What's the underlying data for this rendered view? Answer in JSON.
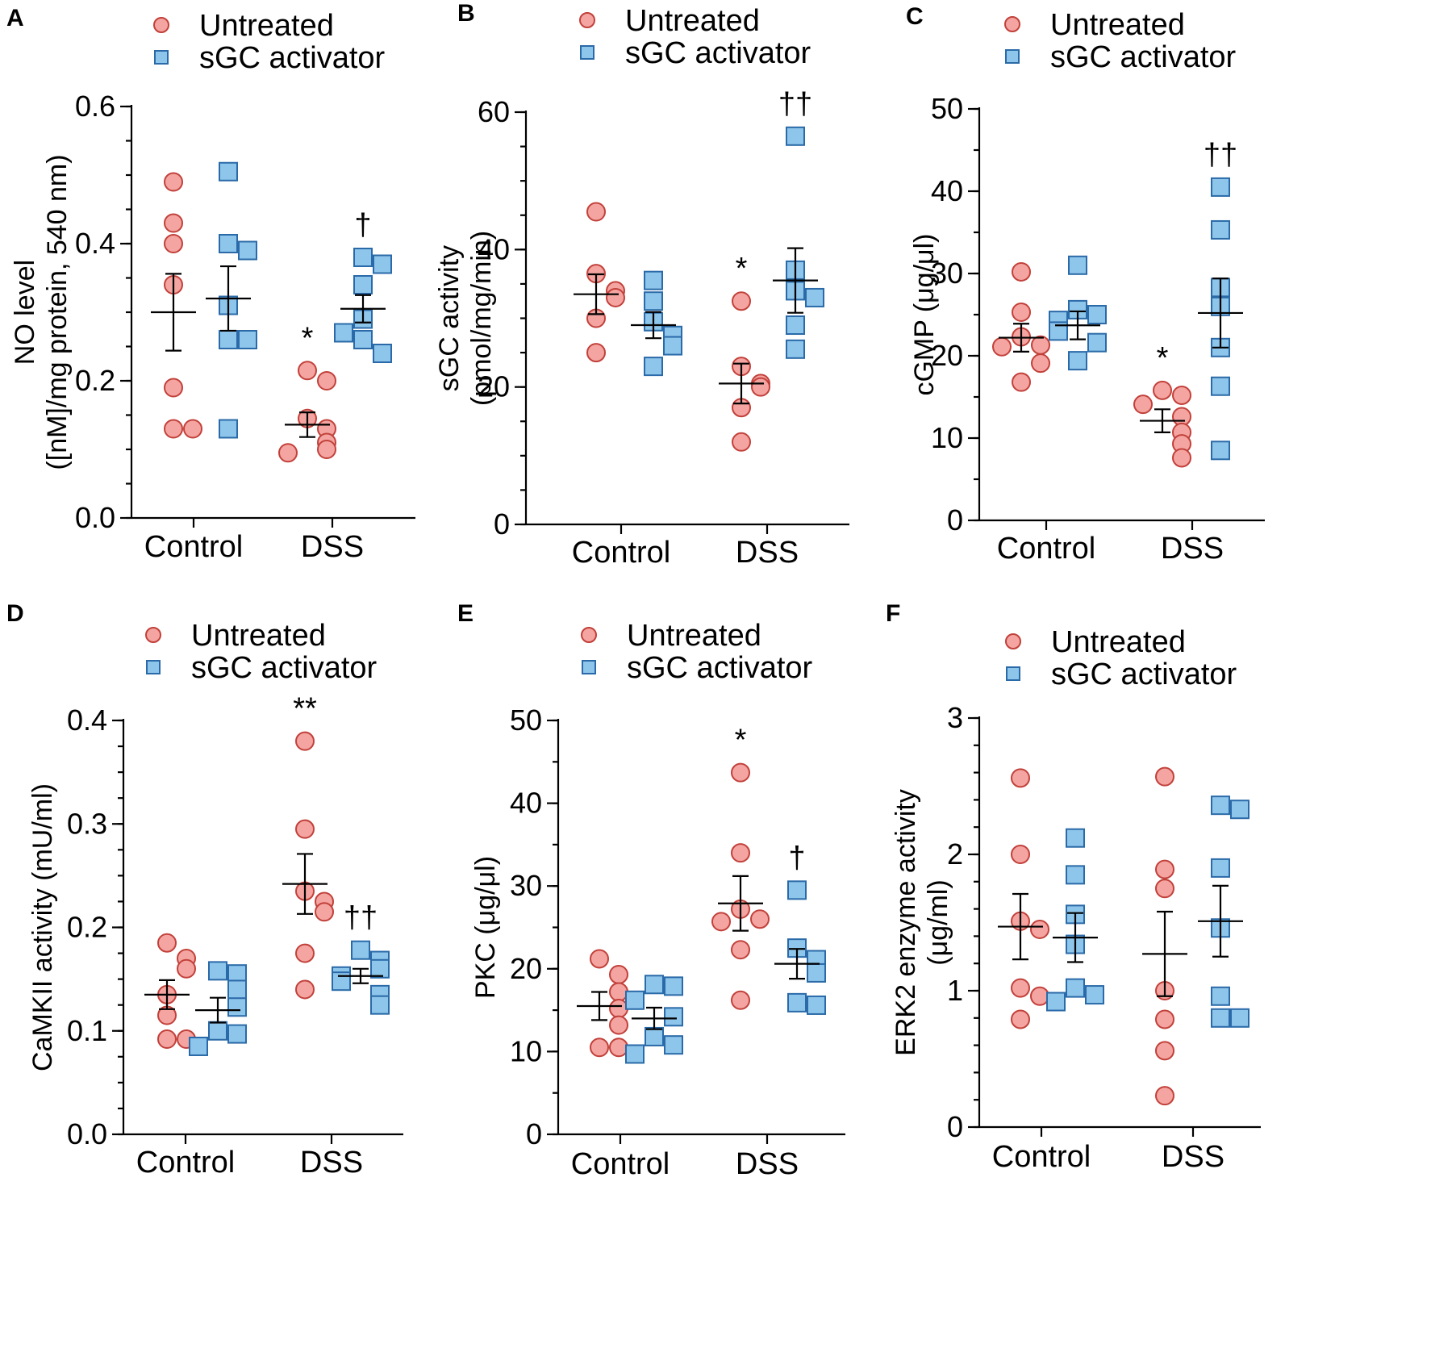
{
  "colors": {
    "untreated": "#f4a5a1",
    "activator": "#8ec5ea",
    "stroke": "#c2403a",
    "stroke_b": "#2a6aa8"
  },
  "legend": {
    "untreated": "Untreated",
    "activator": "sGC activator"
  },
  "categories": [
    "Control",
    "DSS"
  ],
  "chart_data": [
    {
      "type": "scatter",
      "panel": "A",
      "ylabel_lines": [
        "NO level",
        "([nM]/mg protein, 540 nm)"
      ],
      "ylim": [
        0,
        0.6
      ],
      "ticks": [
        "0.0",
        "0.2",
        "0.4",
        "0.6"
      ],
      "tick_values": [
        0,
        0.2,
        0.4,
        0.6
      ],
      "minor_step": 0.05,
      "series": [
        {
          "name": "Untreated",
          "group": "Control",
          "points": [
            0.49,
            0.43,
            0.4,
            0.34,
            0.19,
            0.13,
            0.13
          ],
          "mean": 0.3,
          "sem": 0.056
        },
        {
          "name": "sGC activator",
          "group": "Control",
          "points": [
            0.505,
            0.4,
            0.39,
            0.31,
            0.26,
            0.26,
            0.13
          ],
          "mean": 0.32,
          "sem": 0.047
        },
        {
          "name": "Untreated",
          "group": "DSS",
          "points": [
            0.215,
            0.2,
            0.145,
            0.13,
            0.11,
            0.1,
            0.095
          ],
          "mean": 0.136,
          "sem": 0.018,
          "sig": "*"
        },
        {
          "name": "sGC activator",
          "group": "DSS",
          "points": [
            0.38,
            0.37,
            0.34,
            0.29,
            0.26,
            0.27,
            0.24
          ],
          "mean": 0.305,
          "sem": 0.02,
          "sig": "†"
        }
      ]
    },
    {
      "type": "scatter",
      "panel": "B",
      "ylabel_lines": [
        "sGC activity",
        "(pmol/mg/min)"
      ],
      "ylim": [
        0,
        60
      ],
      "ticks": [
        "0",
        "20",
        "40",
        "60"
      ],
      "tick_values": [
        0,
        20,
        40,
        60
      ],
      "minor_step": 5,
      "series": [
        {
          "name": "Untreated",
          "group": "Control",
          "points": [
            45.5,
            36.5,
            34,
            33,
            30,
            25
          ],
          "mean": 33.5,
          "sem": 2.9
        },
        {
          "name": "sGC activator",
          "group": "Control",
          "points": [
            35.5,
            32.5,
            29.5,
            27.5,
            26,
            23
          ],
          "mean": 29,
          "sem": 1.9
        },
        {
          "name": "Untreated",
          "group": "DSS",
          "points": [
            32.5,
            23,
            20.5,
            20,
            17,
            12
          ],
          "mean": 20.5,
          "sem": 2.9,
          "sig": "*"
        },
        {
          "name": "sGC activator",
          "group": "DSS",
          "points": [
            56.5,
            37,
            34,
            33,
            29,
            25.5
          ],
          "mean": 35.5,
          "sem": 4.7,
          "sig": "††"
        }
      ]
    },
    {
      "type": "scatter",
      "panel": "C",
      "ylabel_lines": [
        "cGMP (μg/μl)"
      ],
      "ylim": [
        0,
        50
      ],
      "ticks": [
        "0",
        "10",
        "20",
        "30",
        "40",
        "50"
      ],
      "tick_values": [
        0,
        10,
        20,
        30,
        40,
        50
      ],
      "minor_step": 5,
      "series": [
        {
          "name": "Untreated",
          "group": "Control",
          "points": [
            30.2,
            25.3,
            22.3,
            21.3,
            21.1,
            19.1,
            16.8
          ],
          "mean": 22.2,
          "sem": 1.7
        },
        {
          "name": "sGC activator",
          "group": "Control",
          "points": [
            31,
            25.6,
            25,
            24.3,
            23,
            21.6,
            19.4
          ],
          "mean": 23.7,
          "sem": 1.7
        },
        {
          "name": "Untreated",
          "group": "DSS",
          "points": [
            15.8,
            15.2,
            14.1,
            12.6,
            10.7,
            9.3,
            7.6
          ],
          "mean": 12.1,
          "sem": 1.4,
          "sig": "*"
        },
        {
          "name": "sGC activator",
          "group": "DSS",
          "points": [
            40.5,
            35.3,
            28.3,
            26,
            21,
            16.3,
            8.5
          ],
          "mean": 25.2,
          "sem": 4.2,
          "sig": "††"
        }
      ]
    },
    {
      "type": "scatter",
      "panel": "D",
      "ylabel_lines": [
        "CaMKII activity (mU/ml)"
      ],
      "ylim": [
        0,
        0.4
      ],
      "ticks": [
        "0.0",
        "0.1",
        "0.2",
        "0.3",
        "0.4"
      ],
      "tick_values": [
        0,
        0.1,
        0.2,
        0.3,
        0.4
      ],
      "minor_step": 0.025,
      "series": [
        {
          "name": "Untreated",
          "group": "Control",
          "points": [
            0.185,
            0.17,
            0.16,
            0.135,
            0.115,
            0.092,
            0.092
          ],
          "mean": 0.135,
          "sem": 0.014
        },
        {
          "name": "sGC activator",
          "group": "Control",
          "points": [
            0.158,
            0.155,
            0.14,
            0.123,
            0.1,
            0.097,
            0.085
          ],
          "mean": 0.12,
          "sem": 0.012
        },
        {
          "name": "Untreated",
          "group": "DSS",
          "points": [
            0.38,
            0.295,
            0.235,
            0.225,
            0.215,
            0.175,
            0.14
          ],
          "mean": 0.242,
          "sem": 0.029,
          "sig": "**"
        },
        {
          "name": "sGC activator",
          "group": "DSS",
          "points": [
            0.178,
            0.168,
            0.16,
            0.153,
            0.148,
            0.135,
            0.125
          ],
          "mean": 0.153,
          "sem": 0.007,
          "sig": "††"
        }
      ]
    },
    {
      "type": "scatter",
      "panel": "E",
      "ylabel_lines": [
        "PKC (μg/μl)"
      ],
      "ylim": [
        0,
        50
      ],
      "ticks": [
        "0",
        "10",
        "20",
        "30",
        "40",
        "50"
      ],
      "tick_values": [
        0,
        10,
        20,
        30,
        40,
        50
      ],
      "minor_step": 5,
      "series": [
        {
          "name": "Untreated",
          "group": "Control",
          "points": [
            21.2,
            19.3,
            17.2,
            15.2,
            13.2,
            10.5,
            10.5
          ],
          "mean": 15.5,
          "sem": 1.7
        },
        {
          "name": "sGC activator",
          "group": "Control",
          "points": [
            18.1,
            17.9,
            16.2,
            14.2,
            11.8,
            10.8,
            9.7
          ],
          "mean": 14,
          "sem": 1.3
        },
        {
          "name": "Untreated",
          "group": "DSS",
          "points": [
            43.7,
            34,
            27.2,
            26,
            25.7,
            22.3,
            16.2
          ],
          "mean": 27.9,
          "sem": 3.3,
          "sig": "*"
        },
        {
          "name": "sGC activator",
          "group": "DSS",
          "points": [
            29.5,
            22.5,
            21.1,
            19.5,
            15.9,
            15.6
          ],
          "mean": 20.6,
          "sem": 1.8,
          "sig": "†"
        }
      ]
    },
    {
      "type": "scatter",
      "panel": "F",
      "ylabel_lines": [
        "ERK2 enzyme activity",
        "(μg/ml)"
      ],
      "ylim": [
        0,
        3
      ],
      "ticks": [
        "0",
        "1",
        "2",
        "3"
      ],
      "tick_values": [
        0,
        1,
        2,
        3
      ],
      "minor_step": 0.2,
      "series": [
        {
          "name": "Untreated",
          "group": "Control",
          "points": [
            2.56,
            2.0,
            1.51,
            1.45,
            1.02,
            0.96,
            0.79
          ],
          "mean": 1.47,
          "sem": 0.24
        },
        {
          "name": "sGC activator",
          "group": "Control",
          "points": [
            2.12,
            1.85,
            1.56,
            1.34,
            1.02,
            0.97,
            0.92
          ],
          "mean": 1.39,
          "sem": 0.18
        },
        {
          "name": "Untreated",
          "group": "DSS",
          "points": [
            2.57,
            1.89,
            1.75,
            1.0,
            0.79,
            0.56,
            0.23
          ],
          "mean": 1.27,
          "sem": 0.31
        },
        {
          "name": "sGC activator",
          "group": "DSS",
          "points": [
            2.36,
            2.33,
            1.9,
            1.46,
            0.96,
            0.8,
            0.8
          ],
          "mean": 1.51,
          "sem": 0.26
        }
      ]
    }
  ]
}
